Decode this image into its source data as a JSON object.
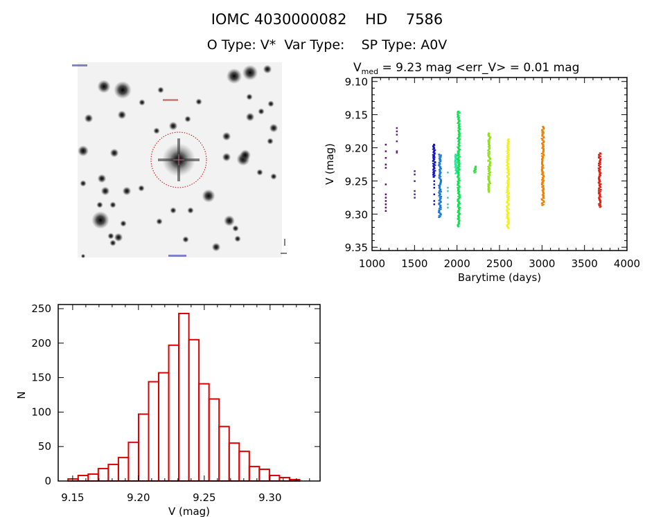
{
  "header": {
    "title": "IOMC 4030000082    HD    7586",
    "subtitle": "O Type: V*  Var Type:    SP Type: A0V"
  },
  "chart_data": [
    {
      "type": "image",
      "description_label": "",
      "marker_color": "#cc0000"
    },
    {
      "type": "scatter",
      "title_main": "V",
      "title_sub": "med",
      "title_rest": " = 9.23 mag <err_V> = 0.01 mag",
      "xlabel": "Barytime (days)",
      "ylabel": "V (mag)",
      "xlim": [
        1000,
        4000
      ],
      "ylim": [
        9.355,
        9.094
      ],
      "y_reversed": true,
      "xticks": [
        "1000",
        "1500",
        "2000",
        "2500",
        "3000",
        "3500",
        "4000"
      ],
      "yticks": [
        "9.10",
        "9.15",
        "9.20",
        "9.25",
        "9.30",
        "9.35"
      ],
      "clusters": [
        {
          "x": 1160,
          "color": "#5a0f6e",
          "y": [
            9.195,
            9.205,
            9.215,
            9.225,
            9.23,
            9.255,
            9.27,
            9.275,
            9.28,
            9.285,
            9.29,
            9.295
          ]
        },
        {
          "x": 1290,
          "color": "#6a1a8a",
          "y": [
            9.17,
            9.175,
            9.18,
            9.19,
            9.205,
            9.207
          ]
        },
        {
          "x": 1500,
          "color": "#4a2a9a",
          "y": [
            9.235,
            9.24,
            9.25,
            9.265,
            9.27,
            9.275
          ]
        },
        {
          "x": 1730,
          "color": "#1414c0",
          "y_range": [
            9.195,
            9.245
          ],
          "y": [
            9.25,
            9.255,
            9.26,
            9.27,
            9.28,
            9.285
          ]
        },
        {
          "x": 1800,
          "color": "#1a78d8",
          "y_range": [
            9.21,
            9.305
          ],
          "y": []
        },
        {
          "x": 1890,
          "color": "#30c8d8",
          "y": [
            9.237,
            9.26,
            9.265,
            9.275,
            9.285,
            9.29
          ]
        },
        {
          "x": 1990,
          "color": "#30e0a0",
          "y_range": [
            9.21,
            9.24
          ],
          "y": []
        },
        {
          "x": 2020,
          "color": "#10e050",
          "y_range": [
            9.145,
            9.32
          ],
          "y": []
        },
        {
          "x": 2210,
          "color": "#30e040",
          "y_range": [
            9.228,
            9.238
          ],
          "y": []
        },
        {
          "x": 2380,
          "color": "#90e020",
          "y_range": [
            9.178,
            9.268
          ],
          "y": []
        },
        {
          "x": 2600,
          "color": "#f0f020",
          "y_range": [
            9.187,
            9.322
          ],
          "y": []
        },
        {
          "x": 3010,
          "color": "#f08000",
          "y_range": [
            9.168,
            9.288
          ],
          "y": []
        },
        {
          "x": 3680,
          "color": "#e02010",
          "y_range": [
            9.208,
            9.29
          ],
          "y": []
        }
      ]
    },
    {
      "type": "bar",
      "histogram": true,
      "xlabel": "V (mag)",
      "ylabel": "N",
      "xlim": [
        9.139,
        9.338
      ],
      "ylim": [
        0,
        256
      ],
      "bin_start": 9.1465,
      "bin_width": 0.00765,
      "values": [
        3,
        8,
        10,
        18,
        24,
        34,
        56,
        97,
        144,
        157,
        197,
        243,
        205,
        141,
        119,
        79,
        55,
        43,
        21,
        17,
        8,
        5,
        2
      ],
      "xticks": [
        "9.15",
        "9.20",
        "9.25",
        "9.30"
      ],
      "yticks": [
        "0",
        "50",
        "100",
        "150",
        "200",
        "250"
      ],
      "color": "#dd0000"
    }
  ]
}
